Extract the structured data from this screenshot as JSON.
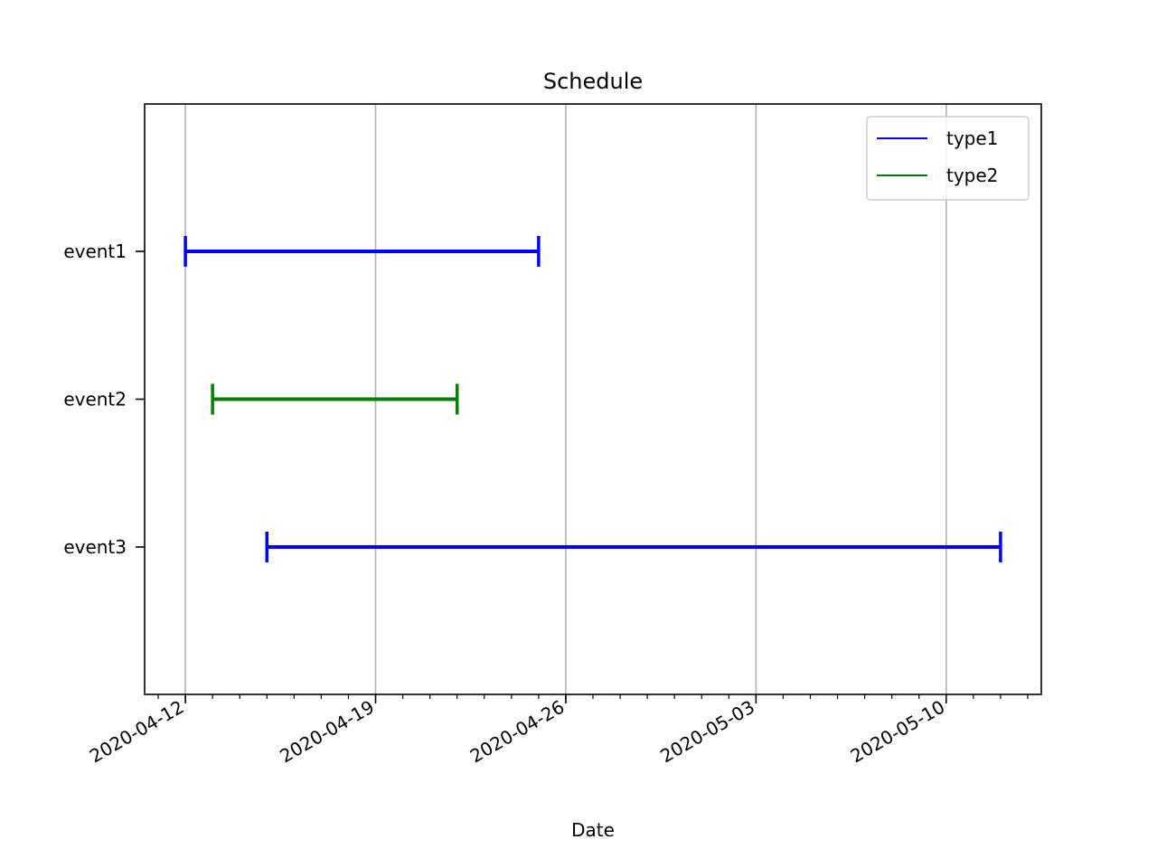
{
  "chart_data": {
    "type": "timeline",
    "title": "Schedule",
    "xlabel": "Date",
    "ylabel": "",
    "x_ticks": [
      "2020-04-12",
      "2020-04-19",
      "2020-04-26",
      "2020-05-03",
      "2020-05-10"
    ],
    "x_range": [
      "2020-04-10 12:00",
      "2020-05-13 12:00"
    ],
    "grid": "x-major",
    "legend_position": "top-right",
    "series": [
      {
        "name": "type1",
        "color": "#0000ff"
      },
      {
        "name": "type2",
        "color": "#008000"
      }
    ],
    "events": [
      {
        "label": "event1",
        "type": "type1",
        "start": "2020-04-12",
        "end": "2020-04-25"
      },
      {
        "label": "event2",
        "type": "type2",
        "start": "2020-04-13",
        "end": "2020-04-22"
      },
      {
        "label": "event3",
        "type": "type1",
        "start": "2020-04-15",
        "end": "2020-05-12"
      }
    ]
  }
}
